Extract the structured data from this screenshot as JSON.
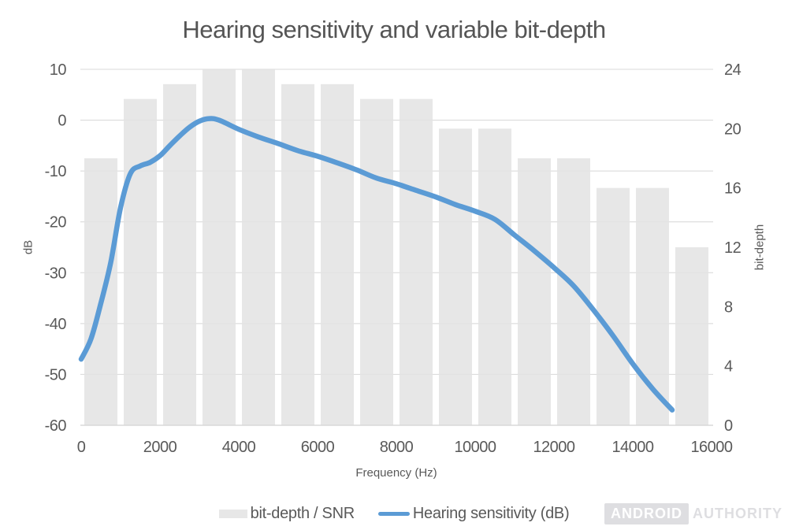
{
  "chart_data": {
    "type": "bar",
    "subtype": "combo-bar-line",
    "title": "Hearing sensitivity and variable bit-depth",
    "grid": "horizontal",
    "legend_position": "bottom",
    "x_axis": {
      "label": "Frequency (Hz)",
      "min": 0,
      "max": 16000,
      "ticks": [
        0,
        2000,
        4000,
        6000,
        8000,
        10000,
        12000,
        14000,
        16000
      ]
    },
    "y_axis_left": {
      "label": "dB",
      "min": -60,
      "max": 10,
      "ticks": [
        10,
        0,
        -10,
        -20,
        -30,
        -40,
        -50,
        -60
      ]
    },
    "y_axis_right": {
      "label": "bit-depth",
      "min": 0,
      "max": 24,
      "ticks": [
        24,
        20,
        16,
        12,
        8,
        4,
        0
      ]
    },
    "series": [
      {
        "name": "bit-depth / SNR",
        "type": "bar",
        "axis": "right",
        "bin_width_hz": 1000,
        "bin_centers": [
          500,
          1500,
          2500,
          3500,
          4500,
          5500,
          6500,
          7500,
          8500,
          9500,
          10500,
          11500,
          12500,
          13500,
          14500,
          15500
        ],
        "values": [
          18,
          22,
          23,
          24,
          24,
          23,
          23,
          22,
          22,
          20,
          20,
          18,
          18,
          16,
          16,
          12
        ]
      },
      {
        "name": "Hearing sensitivity (dB)",
        "type": "line",
        "axis": "left",
        "points": [
          [
            0,
            -47
          ],
          [
            250,
            -43
          ],
          [
            500,
            -36
          ],
          [
            750,
            -28
          ],
          [
            1000,
            -17.2
          ],
          [
            1250,
            -10.5
          ],
          [
            1500,
            -9
          ],
          [
            1750,
            -8.3
          ],
          [
            2000,
            -7
          ],
          [
            2250,
            -5
          ],
          [
            2500,
            -3.1
          ],
          [
            2750,
            -1.4
          ],
          [
            3000,
            -0.2
          ],
          [
            3250,
            0.3
          ],
          [
            3500,
            0
          ],
          [
            4000,
            -1.8
          ],
          [
            4500,
            -3.3
          ],
          [
            5000,
            -4.6
          ],
          [
            5500,
            -6
          ],
          [
            6000,
            -7.1
          ],
          [
            6500,
            -8.4
          ],
          [
            7000,
            -9.8
          ],
          [
            7500,
            -11.4
          ],
          [
            8000,
            -12.5
          ],
          [
            8500,
            -13.8
          ],
          [
            9000,
            -15.1
          ],
          [
            9500,
            -16.6
          ],
          [
            10000,
            -17.9
          ],
          [
            10500,
            -19.5
          ],
          [
            11000,
            -22.6
          ],
          [
            11500,
            -25.7
          ],
          [
            12000,
            -29
          ],
          [
            12500,
            -32.6
          ],
          [
            13000,
            -37.3
          ],
          [
            13500,
            -42.4
          ],
          [
            14000,
            -47.9
          ],
          [
            14500,
            -52.8
          ],
          [
            15000,
            -57
          ]
        ]
      }
    ],
    "colors": {
      "bar": "#E7E7E7",
      "line": "#5B9BD5",
      "grid": "#D9D9D9",
      "axis_text": "#595959",
      "title": "#555555"
    }
  },
  "legend": {
    "items": [
      {
        "label": "bit-depth / SNR"
      },
      {
        "label": "Hearing sensitivity (dB)"
      }
    ]
  },
  "watermark": {
    "badge": "ANDROID",
    "suffix": "AUTHORITY"
  }
}
